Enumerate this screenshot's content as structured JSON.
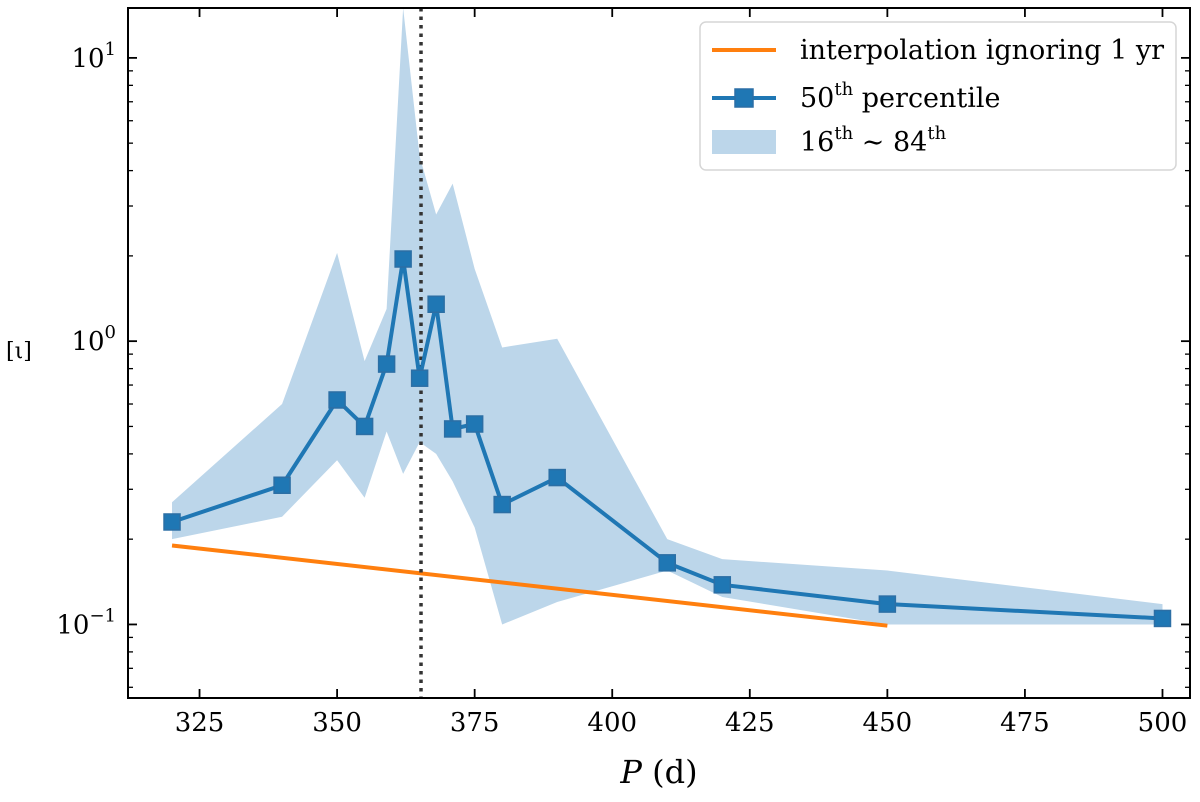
{
  "chart_data": {
    "type": "line",
    "xlabel": "P (d)",
    "ylabel": "[ι]",
    "xlim": [
      312,
      505
    ],
    "ylim": [
      0.055,
      15
    ],
    "yscale": "log",
    "x_ticks": [
      325,
      350,
      375,
      400,
      425,
      450,
      475,
      500
    ],
    "y_ticks": [
      {
        "value": 0.1,
        "base": "10",
        "exp": "−1"
      },
      {
        "value": 1,
        "base": "10",
        "exp": "0"
      },
      {
        "value": 10,
        "base": "10",
        "exp": "1"
      }
    ],
    "vline": {
      "x": 365.25,
      "style": "dotted",
      "color": "#333333"
    },
    "legend_position": "top-right",
    "series": [
      {
        "name": "interpolation ignoring 1 yr",
        "kind": "line",
        "color": "#ff7f0e",
        "x": [
          320,
          450
        ],
        "y": [
          0.19,
          0.099
        ]
      },
      {
        "name": "50th percentile",
        "kind": "line-marker",
        "color": "#1f77b4",
        "x": [
          320,
          340,
          350,
          355,
          359,
          362,
          365,
          368,
          371,
          375,
          380,
          390,
          410,
          420,
          450,
          500
        ],
        "y": [
          0.23,
          0.31,
          0.62,
          0.5,
          0.83,
          1.95,
          0.74,
          1.35,
          0.49,
          0.51,
          0.265,
          0.33,
          0.165,
          0.138,
          0.118,
          0.105
        ]
      },
      {
        "name": "16th ~ 84th",
        "kind": "band",
        "color": "#bcd6ea",
        "x": [
          320,
          340,
          350,
          355,
          359,
          362,
          365,
          368,
          371,
          375,
          380,
          390,
          410,
          420,
          450,
          500
        ],
        "upper": [
          0.27,
          0.6,
          2.05,
          0.85,
          1.3,
          15.0,
          4.5,
          2.8,
          3.6,
          1.8,
          0.95,
          1.02,
          0.2,
          0.17,
          0.155,
          0.118
        ],
        "lower": [
          0.2,
          0.24,
          0.38,
          0.28,
          0.48,
          0.34,
          0.44,
          0.4,
          0.32,
          0.22,
          0.1,
          0.12,
          0.155,
          0.125,
          0.1,
          0.1
        ]
      }
    ],
    "legend": [
      {
        "text": "interpolation ignoring 1 yr",
        "base": "interpolation ignoring 1 yr",
        "sup1": "",
        "mid": "",
        "sup2": ""
      },
      {
        "text": "50th percentile",
        "base": "50",
        "sup1": "th",
        "mid": " percentile",
        "sup2": ""
      },
      {
        "text": "16th ~ 84th",
        "base": "16",
        "sup1": "th",
        "mid": " ∼ 84",
        "sup2": "th"
      }
    ]
  }
}
